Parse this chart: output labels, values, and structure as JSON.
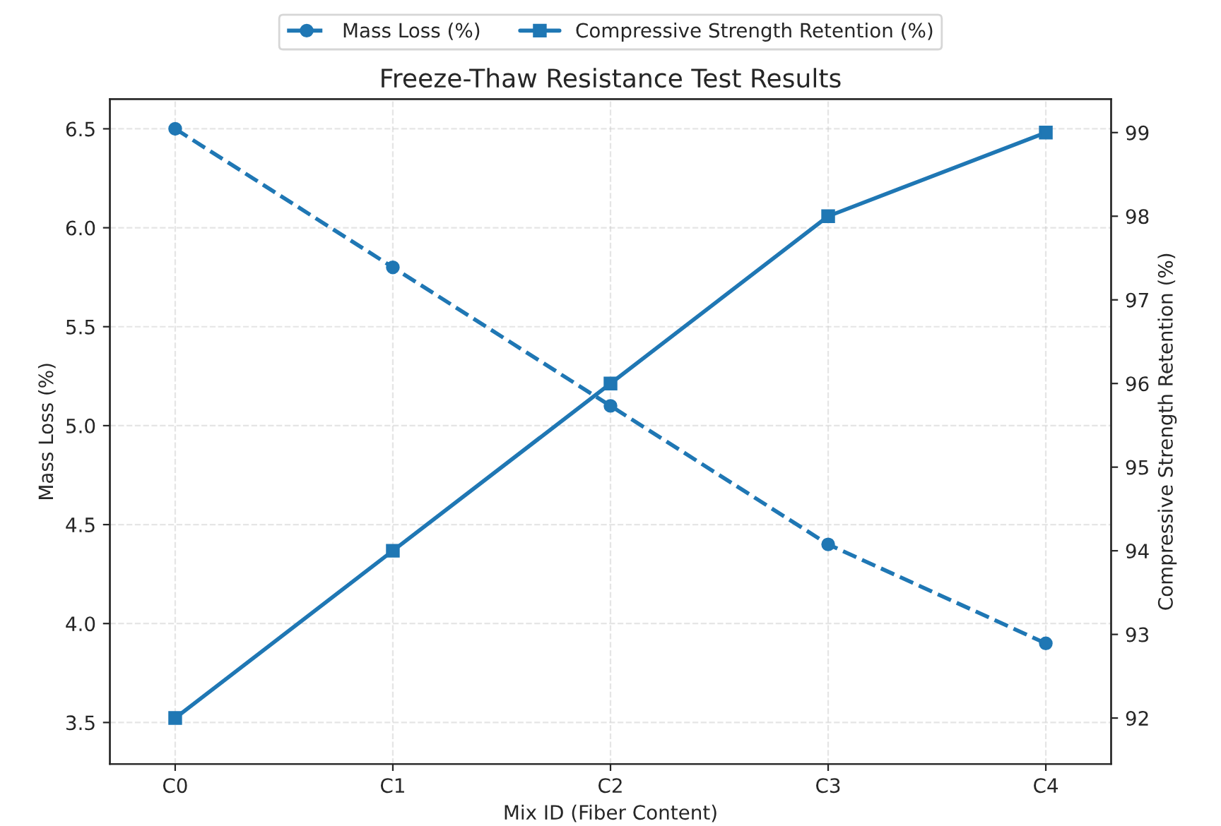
{
  "chart_data": {
    "type": "line",
    "title": "Freeze-Thaw Resistance Test Results",
    "xlabel": "Mix ID (Fiber Content)",
    "ylabel": "Mass Loss (%)",
    "y2label": "Compressive Strength Retention (%)",
    "categories": [
      "C0",
      "C1",
      "C2",
      "C3",
      "C4"
    ],
    "series": [
      {
        "name": "Mass Loss (%)",
        "color": "#1f77b4",
        "values": [
          6.5,
          5.8,
          5.1,
          4.4,
          3.9
        ],
        "marker": "circle",
        "line_style": "dashed"
      },
      {
        "name": "Compressive Strength Retention (%)",
        "color": "#1f77b4",
        "values": [
          92,
          94,
          96,
          98,
          99
        ],
        "marker": "square",
        "line_style": "solid",
        "axis": "y2"
      }
    ],
    "ylim": [
      3.29,
      6.65
    ],
    "yticks": [
      3.5,
      {
        "value": 4,
        "label": "4.0"
      },
      4.5,
      {
        "value": 5,
        "label": "5.0"
      },
      5.5,
      {
        "value": 6,
        "label": "6.0"
      },
      6.5
    ],
    "y2lim": [
      91.45,
      99.4
    ],
    "y2ticks": [
      92,
      93,
      94,
      95,
      96,
      97,
      98,
      99
    ],
    "grid": true,
    "legend": "top"
  }
}
